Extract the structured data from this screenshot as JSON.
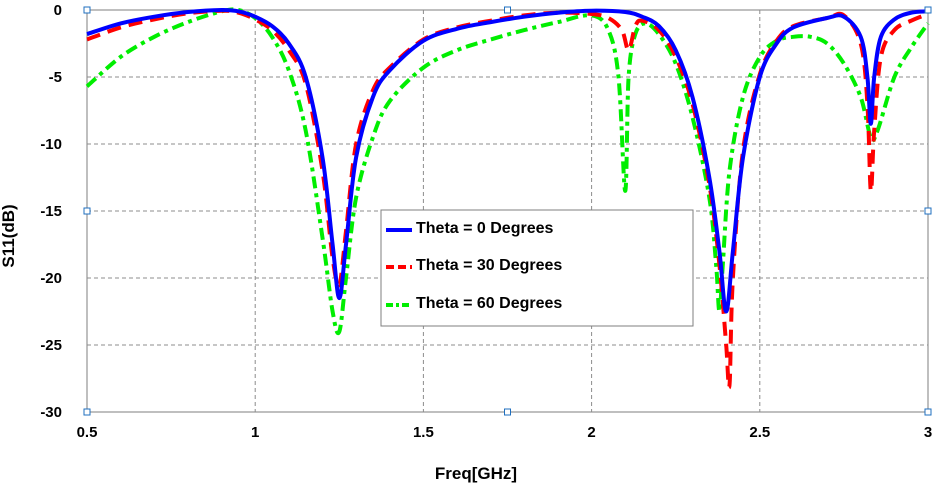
{
  "chart_data": {
    "type": "line",
    "title": "",
    "xlabel": "Freq[GHz]",
    "ylabel": "S11(dB)",
    "xlim": [
      0.5,
      3
    ],
    "ylim": [
      -30,
      0
    ],
    "xticks": [
      0.5,
      1,
      1.5,
      2,
      2.5,
      3
    ],
    "yticks": [
      0,
      -5,
      -10,
      -15,
      -20,
      -25,
      -30
    ],
    "xtick_labels": [
      "0.5",
      "1",
      "1.5",
      "2",
      "2.5",
      "3"
    ],
    "ytick_labels": [
      "0",
      "-5",
      "-10",
      "-15",
      "-20",
      "-25",
      "-30"
    ],
    "grid": true,
    "legend_position": "center",
    "series": [
      {
        "name": "Theta = 0 Degrees",
        "color": "#0000ff",
        "style": "solid",
        "x": [
          0.5,
          0.6,
          0.7,
          0.8,
          0.9,
          0.95,
          1.0,
          1.05,
          1.1,
          1.15,
          1.2,
          1.23,
          1.25,
          1.27,
          1.3,
          1.35,
          1.4,
          1.5,
          1.6,
          1.7,
          1.8,
          1.9,
          2.0,
          2.1,
          2.15,
          2.2,
          2.25,
          2.3,
          2.35,
          2.38,
          2.4,
          2.42,
          2.45,
          2.5,
          2.55,
          2.6,
          2.7,
          2.75,
          2.8,
          2.82,
          2.83,
          2.84,
          2.86,
          2.9,
          2.95,
          3.0
        ],
        "values": [
          -1.8,
          -1.0,
          -0.5,
          -0.15,
          0,
          -0.1,
          -0.5,
          -1.2,
          -2.5,
          -5.0,
          -11.0,
          -17.5,
          -21.5,
          -17.5,
          -11.0,
          -6.5,
          -4.5,
          -2.3,
          -1.4,
          -0.9,
          -0.5,
          -0.2,
          -0.05,
          -0.15,
          -0.5,
          -1.2,
          -3.0,
          -6.5,
          -12.5,
          -18.0,
          -22.5,
          -18.0,
          -11.0,
          -5.0,
          -2.5,
          -1.3,
          -0.6,
          -0.5,
          -2.0,
          -5.0,
          -8.5,
          -5.0,
          -2.0,
          -0.7,
          -0.2,
          -0.1
        ]
      },
      {
        "name": "Theta = 30 Degrees",
        "color": "#ff0000",
        "style": "dashed",
        "x": [
          0.5,
          0.6,
          0.7,
          0.8,
          0.9,
          0.95,
          1.0,
          1.05,
          1.1,
          1.15,
          1.2,
          1.23,
          1.25,
          1.27,
          1.3,
          1.35,
          1.4,
          1.5,
          1.6,
          1.7,
          1.8,
          1.9,
          2.0,
          2.05,
          2.09,
          2.11,
          2.13,
          2.15,
          2.2,
          2.25,
          2.3,
          2.35,
          2.38,
          2.4,
          2.41,
          2.42,
          2.45,
          2.5,
          2.55,
          2.6,
          2.7,
          2.75,
          2.8,
          2.82,
          2.83,
          2.84,
          2.86,
          2.9,
          2.95,
          3.0
        ],
        "values": [
          -2.2,
          -1.3,
          -0.7,
          -0.25,
          -0.05,
          -0.2,
          -0.7,
          -1.5,
          -3.0,
          -5.5,
          -12.0,
          -18.5,
          -20.5,
          -16.5,
          -10.0,
          -6.0,
          -4.3,
          -2.2,
          -1.3,
          -0.8,
          -0.4,
          -0.2,
          -0.3,
          -0.6,
          -1.5,
          -3.0,
          -1.2,
          -0.8,
          -1.5,
          -3.5,
          -7.0,
          -13.0,
          -19.0,
          -25.0,
          -28.0,
          -20.0,
          -10.5,
          -4.8,
          -2.3,
          -1.2,
          -0.6,
          -0.4,
          -2.5,
          -7.0,
          -13.5,
          -9.0,
          -3.5,
          -1.5,
          -0.8,
          -0.3
        ]
      },
      {
        "name": "Theta = 60 Degrees",
        "color": "#00ee00",
        "style": "dash-dot",
        "x": [
          0.5,
          0.6,
          0.7,
          0.8,
          0.9,
          0.95,
          1.0,
          1.05,
          1.1,
          1.15,
          1.2,
          1.23,
          1.25,
          1.27,
          1.3,
          1.35,
          1.4,
          1.5,
          1.6,
          1.7,
          1.8,
          1.9,
          2.0,
          2.05,
          2.08,
          2.1,
          2.11,
          2.13,
          2.16,
          2.2,
          2.25,
          2.3,
          2.35,
          2.37,
          2.38,
          2.39,
          2.41,
          2.45,
          2.5,
          2.55,
          2.6,
          2.65,
          2.7,
          2.75,
          2.8,
          2.83,
          2.85,
          2.9,
          2.95,
          3.0
        ],
        "values": [
          -5.7,
          -3.5,
          -2.0,
          -0.9,
          -0.1,
          0,
          -0.6,
          -2.0,
          -4.5,
          -9.0,
          -17.0,
          -22.5,
          -24.0,
          -20.0,
          -14.0,
          -9.5,
          -6.8,
          -4.3,
          -3.0,
          -2.2,
          -1.5,
          -0.9,
          -0.4,
          -1.5,
          -5.0,
          -13.5,
          -5.0,
          -1.8,
          -1.0,
          -1.8,
          -4.0,
          -8.0,
          -14.0,
          -19.0,
          -22.5,
          -19.0,
          -12.0,
          -6.5,
          -3.5,
          -2.3,
          -2.0,
          -2.0,
          -2.5,
          -4.0,
          -6.5,
          -9.5,
          -9.0,
          -5.0,
          -2.8,
          -1.0
        ]
      }
    ]
  }
}
